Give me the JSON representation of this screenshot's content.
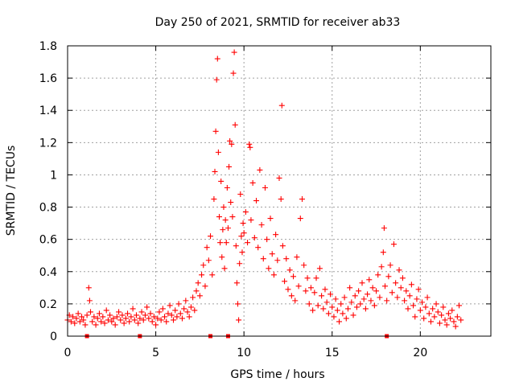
{
  "chart_data": {
    "type": "scatter",
    "title": "Day 250 of 2021, SRMTID for receiver ab33",
    "xlabel": "GPS time / hours",
    "ylabel": "SRMTID / TECUs",
    "xlim": [
      0,
      24
    ],
    "ylim": [
      0,
      1.8
    ],
    "x_ticks": [
      0,
      5,
      10,
      15,
      20
    ],
    "y_ticks": [
      0,
      0.2,
      0.4,
      0.6,
      0.8,
      1,
      1.2,
      1.4,
      1.6,
      1.8
    ],
    "x_tick_labels": [
      "0",
      "5",
      "10",
      "15",
      "20"
    ],
    "y_tick_labels": [
      "0",
      "0.2",
      "0.4",
      "0.6",
      "0.8",
      "1",
      "1.2",
      "1.4",
      "1.6",
      "1.8"
    ],
    "grid": true,
    "marker": "plus",
    "series_color": "#ff0000",
    "axis_markers_x": [
      1.1,
      4.1,
      8.1,
      9.1,
      18.1
    ],
    "series": [
      {
        "name": "SRMTID",
        "points": [
          [
            0.0,
            0.1
          ],
          [
            0.1,
            0.13
          ],
          [
            0.2,
            0.09
          ],
          [
            0.3,
            0.12
          ],
          [
            0.4,
            0.08
          ],
          [
            0.5,
            0.11
          ],
          [
            0.6,
            0.14
          ],
          [
            0.7,
            0.09
          ],
          [
            0.8,
            0.12
          ],
          [
            0.9,
            0.1
          ],
          [
            1.0,
            0.07
          ],
          [
            1.1,
            0.13
          ],
          [
            1.2,
            0.3
          ],
          [
            1.25,
            0.22
          ],
          [
            1.3,
            0.15
          ],
          [
            1.4,
            0.09
          ],
          [
            1.5,
            0.12
          ],
          [
            1.6,
            0.07
          ],
          [
            1.7,
            0.11
          ],
          [
            1.8,
            0.14
          ],
          [
            1.9,
            0.09
          ],
          [
            2.0,
            0.12
          ],
          [
            2.1,
            0.08
          ],
          [
            2.2,
            0.16
          ],
          [
            2.3,
            0.1
          ],
          [
            2.4,
            0.13
          ],
          [
            2.5,
            0.09
          ],
          [
            2.6,
            0.11
          ],
          [
            2.7,
            0.07
          ],
          [
            2.8,
            0.12
          ],
          [
            2.9,
            0.15
          ],
          [
            3.0,
            0.1
          ],
          [
            3.1,
            0.13
          ],
          [
            3.2,
            0.08
          ],
          [
            3.3,
            0.11
          ],
          [
            3.4,
            0.14
          ],
          [
            3.5,
            0.09
          ],
          [
            3.6,
            0.12
          ],
          [
            3.7,
            0.17
          ],
          [
            3.8,
            0.1
          ],
          [
            3.9,
            0.13
          ],
          [
            4.0,
            0.08
          ],
          [
            4.1,
            0.11
          ],
          [
            4.2,
            0.15
          ],
          [
            4.3,
            0.1
          ],
          [
            4.4,
            0.13
          ],
          [
            4.5,
            0.18
          ],
          [
            4.6,
            0.11
          ],
          [
            4.7,
            0.14
          ],
          [
            4.8,
            0.09
          ],
          [
            4.9,
            0.12
          ],
          [
            5.0,
            0.07
          ],
          [
            5.1,
            0.11
          ],
          [
            5.2,
            0.15
          ],
          [
            5.3,
            0.1
          ],
          [
            5.4,
            0.17
          ],
          [
            5.5,
            0.12
          ],
          [
            5.6,
            0.09
          ],
          [
            5.7,
            0.14
          ],
          [
            5.8,
            0.19
          ],
          [
            5.9,
            0.13
          ],
          [
            6.0,
            0.1
          ],
          [
            6.1,
            0.16
          ],
          [
            6.2,
            0.12
          ],
          [
            6.3,
            0.2
          ],
          [
            6.4,
            0.14
          ],
          [
            6.5,
            0.11
          ],
          [
            6.6,
            0.17
          ],
          [
            6.7,
            0.22
          ],
          [
            6.8,
            0.15
          ],
          [
            6.9,
            0.12
          ],
          [
            7.0,
            0.18
          ],
          [
            7.1,
            0.24
          ],
          [
            7.2,
            0.16
          ],
          [
            7.3,
            0.28
          ],
          [
            7.4,
            0.33
          ],
          [
            7.5,
            0.25
          ],
          [
            7.6,
            0.38
          ],
          [
            7.7,
            0.44
          ],
          [
            7.8,
            0.31
          ],
          [
            7.9,
            0.55
          ],
          [
            8.0,
            0.47
          ],
          [
            8.1,
            0.62
          ],
          [
            8.2,
            0.38
          ],
          [
            8.3,
            0.85
          ],
          [
            8.35,
            1.02
          ],
          [
            8.4,
            1.27
          ],
          [
            8.45,
            1.59
          ],
          [
            8.5,
            1.72
          ],
          [
            8.55,
            1.14
          ],
          [
            8.6,
            0.74
          ],
          [
            8.65,
            0.58
          ],
          [
            8.7,
            0.96
          ],
          [
            8.75,
            0.49
          ],
          [
            8.8,
            0.66
          ],
          [
            8.85,
            0.8
          ],
          [
            8.9,
            0.42
          ],
          [
            8.95,
            0.72
          ],
          [
            9.0,
            0.58
          ],
          [
            9.05,
            0.92
          ],
          [
            9.1,
            0.67
          ],
          [
            9.15,
            1.05
          ],
          [
            9.2,
            1.21
          ],
          [
            9.25,
            0.83
          ],
          [
            9.3,
            1.19
          ],
          [
            9.35,
            0.74
          ],
          [
            9.4,
            1.63
          ],
          [
            9.45,
            1.76
          ],
          [
            9.5,
            1.31
          ],
          [
            9.55,
            0.56
          ],
          [
            9.6,
            0.33
          ],
          [
            9.65,
            0.2
          ],
          [
            9.7,
            0.1
          ],
          [
            9.75,
            0.45
          ],
          [
            9.8,
            0.88
          ],
          [
            9.85,
            0.62
          ],
          [
            9.9,
            0.52
          ],
          [
            9.95,
            0.7
          ],
          [
            10.0,
            0.64
          ],
          [
            10.1,
            0.77
          ],
          [
            10.2,
            0.58
          ],
          [
            10.3,
            1.19
          ],
          [
            10.35,
            1.17
          ],
          [
            10.4,
            0.72
          ],
          [
            10.5,
            0.95
          ],
          [
            10.6,
            0.61
          ],
          [
            10.7,
            0.84
          ],
          [
            10.8,
            0.55
          ],
          [
            10.9,
            1.03
          ],
          [
            11.0,
            0.69
          ],
          [
            11.1,
            0.48
          ],
          [
            11.2,
            0.92
          ],
          [
            11.3,
            0.6
          ],
          [
            11.4,
            0.42
          ],
          [
            11.5,
            0.73
          ],
          [
            11.6,
            0.51
          ],
          [
            11.7,
            0.38
          ],
          [
            11.8,
            0.63
          ],
          [
            11.9,
            0.47
          ],
          [
            12.0,
            0.98
          ],
          [
            12.1,
            0.85
          ],
          [
            12.15,
            1.43
          ],
          [
            12.2,
            0.56
          ],
          [
            12.3,
            0.34
          ],
          [
            12.4,
            0.48
          ],
          [
            12.5,
            0.29
          ],
          [
            12.6,
            0.41
          ],
          [
            12.7,
            0.25
          ],
          [
            12.8,
            0.37
          ],
          [
            12.9,
            0.22
          ],
          [
            13.0,
            0.49
          ],
          [
            13.1,
            0.31
          ],
          [
            13.2,
            0.73
          ],
          [
            13.3,
            0.85
          ],
          [
            13.4,
            0.44
          ],
          [
            13.5,
            0.28
          ],
          [
            13.6,
            0.36
          ],
          [
            13.7,
            0.2
          ],
          [
            13.8,
            0.3
          ],
          [
            13.9,
            0.16
          ],
          [
            14.0,
            0.27
          ],
          [
            14.1,
            0.36
          ],
          [
            14.2,
            0.19
          ],
          [
            14.3,
            0.42
          ],
          [
            14.4,
            0.25
          ],
          [
            14.5,
            0.17
          ],
          [
            14.6,
            0.29
          ],
          [
            14.7,
            0.21
          ],
          [
            14.8,
            0.14
          ],
          [
            14.9,
            0.26
          ],
          [
            15.0,
            0.18
          ],
          [
            15.1,
            0.12
          ],
          [
            15.2,
            0.23
          ],
          [
            15.3,
            0.16
          ],
          [
            15.4,
            0.09
          ],
          [
            15.5,
            0.2
          ],
          [
            15.6,
            0.14
          ],
          [
            15.7,
            0.24
          ],
          [
            15.8,
            0.11
          ],
          [
            15.9,
            0.17
          ],
          [
            16.0,
            0.3
          ],
          [
            16.1,
            0.21
          ],
          [
            16.2,
            0.13
          ],
          [
            16.3,
            0.25
          ],
          [
            16.4,
            0.18
          ],
          [
            16.5,
            0.28
          ],
          [
            16.6,
            0.2
          ],
          [
            16.7,
            0.33
          ],
          [
            16.8,
            0.23
          ],
          [
            16.9,
            0.17
          ],
          [
            17.0,
            0.26
          ],
          [
            17.1,
            0.35
          ],
          [
            17.2,
            0.22
          ],
          [
            17.3,
            0.3
          ],
          [
            17.4,
            0.19
          ],
          [
            17.5,
            0.28
          ],
          [
            17.6,
            0.38
          ],
          [
            17.7,
            0.24
          ],
          [
            17.8,
            0.43
          ],
          [
            17.9,
            0.52
          ],
          [
            17.95,
            0.67
          ],
          [
            18.0,
            0.31
          ],
          [
            18.1,
            0.22
          ],
          [
            18.2,
            0.37
          ],
          [
            18.3,
            0.44
          ],
          [
            18.4,
            0.27
          ],
          [
            18.5,
            0.57
          ],
          [
            18.6,
            0.33
          ],
          [
            18.7,
            0.24
          ],
          [
            18.8,
            0.41
          ],
          [
            18.9,
            0.3
          ],
          [
            19.0,
            0.36
          ],
          [
            19.1,
            0.22
          ],
          [
            19.2,
            0.28
          ],
          [
            19.3,
            0.17
          ],
          [
            19.4,
            0.25
          ],
          [
            19.5,
            0.32
          ],
          [
            19.6,
            0.19
          ],
          [
            19.7,
            0.12
          ],
          [
            19.8,
            0.23
          ],
          [
            19.9,
            0.29
          ],
          [
            20.0,
            0.16
          ],
          [
            20.1,
            0.21
          ],
          [
            20.2,
            0.11
          ],
          [
            20.3,
            0.18
          ],
          [
            20.4,
            0.24
          ],
          [
            20.5,
            0.14
          ],
          [
            20.6,
            0.09
          ],
          [
            20.7,
            0.17
          ],
          [
            20.8,
            0.12
          ],
          [
            20.9,
            0.2
          ],
          [
            21.0,
            0.15
          ],
          [
            21.1,
            0.08
          ],
          [
            21.2,
            0.13
          ],
          [
            21.3,
            0.18
          ],
          [
            21.4,
            0.1
          ],
          [
            21.5,
            0.07
          ],
          [
            21.6,
            0.14
          ],
          [
            21.7,
            0.11
          ],
          [
            21.8,
            0.16
          ],
          [
            21.9,
            0.09
          ],
          [
            22.0,
            0.06
          ],
          [
            22.1,
            0.12
          ],
          [
            22.2,
            0.19
          ],
          [
            22.3,
            0.1
          ]
        ]
      }
    ]
  }
}
